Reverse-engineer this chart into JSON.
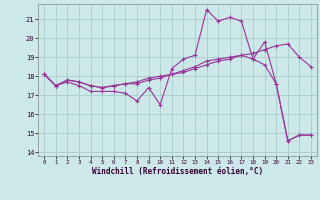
{
  "xlabel": "Windchill (Refroidissement éolien,°C)",
  "bg_color": "#cce8e8",
  "grid_color": "#aacccc",
  "line_color": "#993399",
  "xlim": [
    -0.5,
    23.5
  ],
  "ylim": [
    13.8,
    21.8
  ],
  "yticks": [
    14,
    15,
    16,
    17,
    18,
    19,
    20,
    21
  ],
  "xticks": [
    0,
    1,
    2,
    3,
    4,
    5,
    6,
    7,
    8,
    9,
    10,
    11,
    12,
    13,
    14,
    15,
    16,
    17,
    18,
    19,
    20,
    21,
    22,
    23
  ],
  "series1_x": [
    0,
    1,
    2,
    3,
    4,
    5,
    6,
    7,
    8,
    9,
    10,
    11,
    12,
    13,
    14,
    15,
    16,
    17,
    18,
    19,
    20,
    21,
    22,
    23
  ],
  "series1_y": [
    18.1,
    17.5,
    17.7,
    17.5,
    17.2,
    17.2,
    17.2,
    17.1,
    16.7,
    17.4,
    16.5,
    18.4,
    18.9,
    19.1,
    21.5,
    20.9,
    21.1,
    20.9,
    18.9,
    19.8,
    17.6,
    14.6,
    14.9,
    14.9
  ],
  "series2_x": [
    0,
    1,
    2,
    3,
    4,
    5,
    6,
    7,
    8,
    9,
    10,
    11,
    12,
    13,
    14,
    15,
    16,
    17,
    18,
    19,
    20,
    21,
    22,
    23
  ],
  "series2_y": [
    18.1,
    17.5,
    17.8,
    17.7,
    17.5,
    17.4,
    17.5,
    17.6,
    17.6,
    17.8,
    17.9,
    18.1,
    18.2,
    18.4,
    18.6,
    18.8,
    18.9,
    19.1,
    19.2,
    19.4,
    19.6,
    19.7,
    19.0,
    18.5
  ],
  "series3_x": [
    0,
    1,
    2,
    3,
    4,
    5,
    6,
    7,
    8,
    9,
    10,
    11,
    12,
    13,
    14,
    15,
    16,
    17,
    18,
    19,
    20,
    21,
    22,
    23
  ],
  "series3_y": [
    18.1,
    17.5,
    17.8,
    17.7,
    17.5,
    17.4,
    17.5,
    17.6,
    17.7,
    17.9,
    18.0,
    18.1,
    18.3,
    18.5,
    18.8,
    18.9,
    19.0,
    19.1,
    18.9,
    18.6,
    17.6,
    14.6,
    14.9,
    14.9
  ]
}
